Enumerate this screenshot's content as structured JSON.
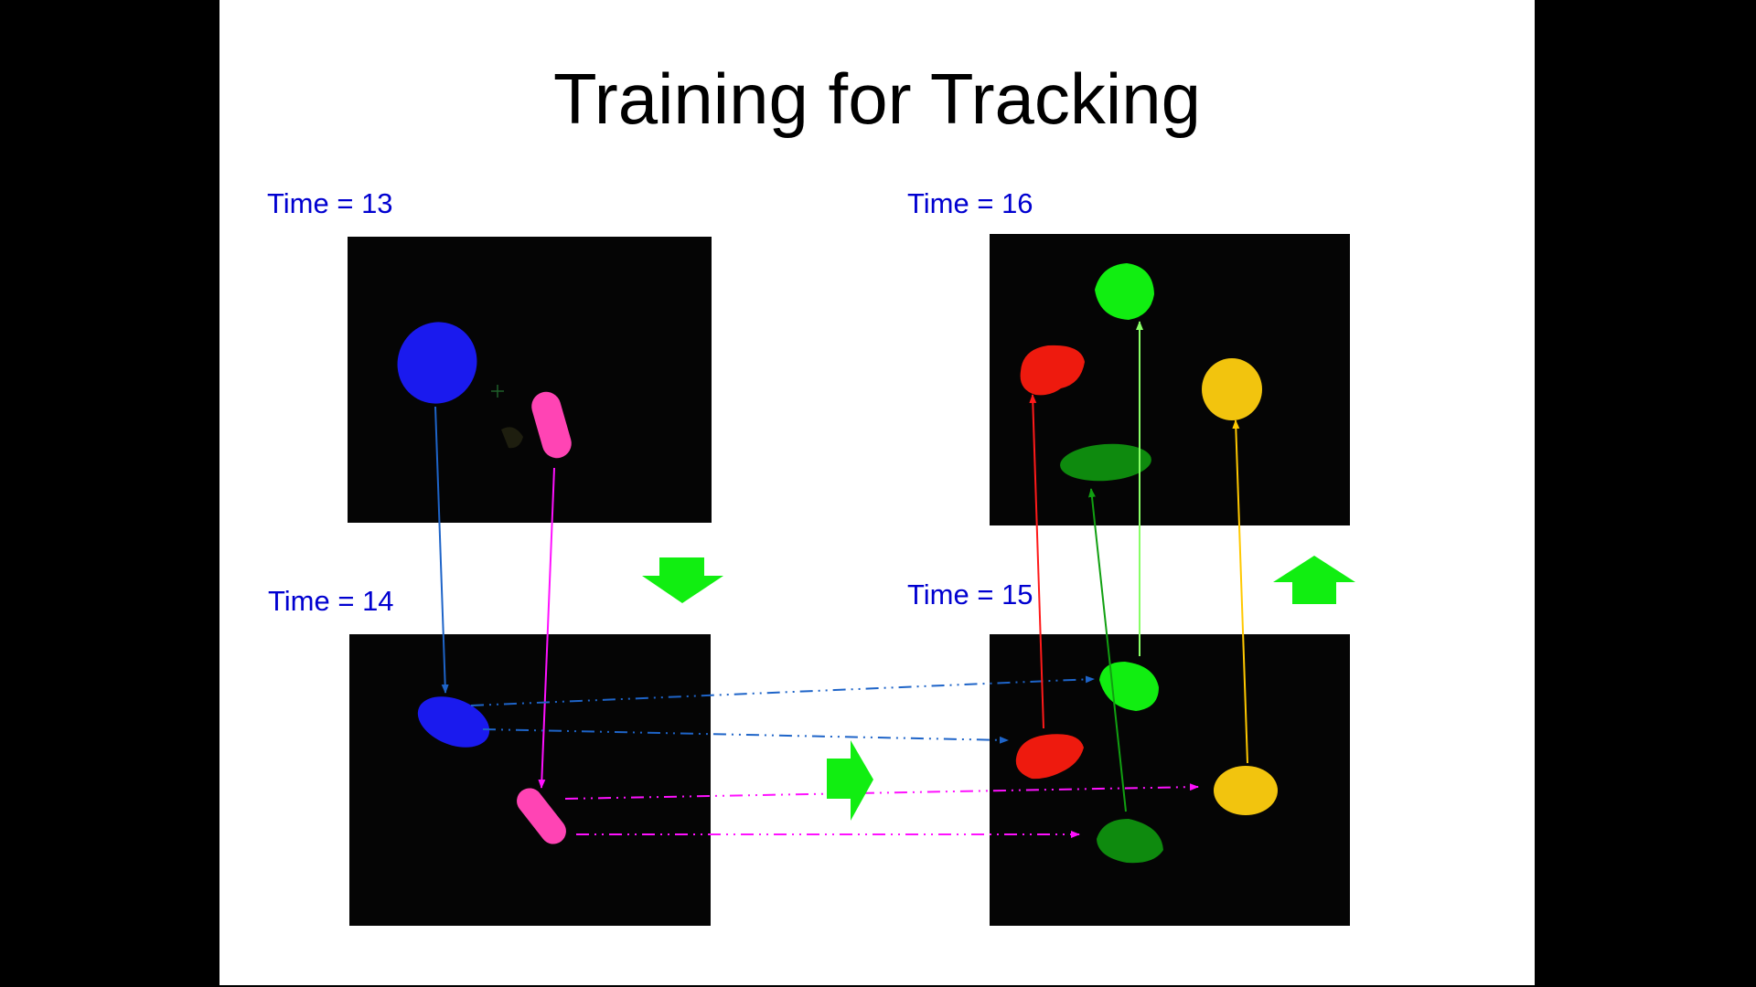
{
  "slide": {
    "title": "Training for Tracking",
    "labels": {
      "t13": "Time = 13",
      "t14": "Time = 14",
      "t15": "Time = 15",
      "t16": "Time = 16"
    }
  },
  "colors": {
    "blue": "#1a1aee",
    "magenta": "#ff44b4",
    "green": "#11ee11",
    "dark_green": "#0e8a0e",
    "red": "#ee1a0e",
    "yellow": "#f2c40e",
    "track_blue": "#1e64c8",
    "track_magenta": "#ff11ff",
    "track_red": "#ff1a1a",
    "track_green": "#11a011",
    "track_light_green": "#88ff66",
    "track_yellow": "#ffc800",
    "flow_arrow": "#11ee11",
    "label": "#0000d0"
  }
}
